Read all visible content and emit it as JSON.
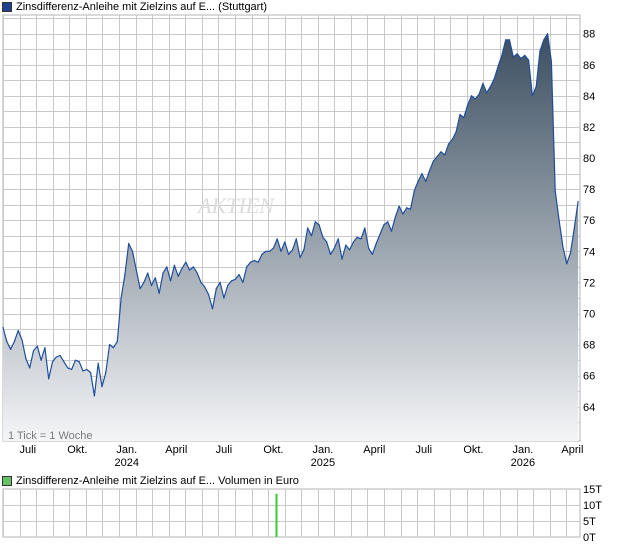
{
  "chart_data": [
    {
      "type": "area",
      "legend": "Zinsdifferenz-Anleihe mit Zielzins auf E... (Stuttgart)",
      "watermark": "AKTIEN",
      "tick_note": "1 Tick = 1 Woche",
      "x_tick_labels": [
        {
          "label": "Juli",
          "year": ""
        },
        {
          "label": "Okt.",
          "year": ""
        },
        {
          "label": "Jan.",
          "year": "2024"
        },
        {
          "label": "April",
          "year": ""
        },
        {
          "label": "Juli",
          "year": ""
        },
        {
          "label": "Okt.",
          "year": ""
        },
        {
          "label": "Jan.",
          "year": "2025"
        },
        {
          "label": "April",
          "year": ""
        },
        {
          "label": "Juli",
          "year": ""
        },
        {
          "label": "Okt.",
          "year": ""
        },
        {
          "label": "Jan.",
          "year": "2026"
        },
        {
          "label": "April",
          "year": ""
        }
      ],
      "x_tick_weeks": [
        6.5,
        19.5,
        32.5,
        45.5,
        58,
        71,
        84,
        97.5,
        110.5,
        123.5,
        136.5,
        149.5
      ],
      "y_ticks": [
        "64",
        "66",
        "68",
        "70",
        "72",
        "74",
        "76",
        "78",
        "80",
        "82",
        "84",
        "86",
        "88"
      ],
      "ylim": [
        61.8,
        89.2
      ],
      "xlim": [
        0,
        151.5
      ],
      "points": [
        [
          0,
          69.1
        ],
        [
          1,
          68.2
        ],
        [
          2,
          67.7
        ],
        [
          3,
          68.2
        ],
        [
          4,
          68.9
        ],
        [
          5,
          68.3
        ],
        [
          6,
          67.1
        ],
        [
          7,
          66.5
        ],
        [
          8,
          67.6
        ],
        [
          9,
          67.9
        ],
        [
          10,
          67.0
        ],
        [
          11,
          67.8
        ],
        [
          12,
          65.8
        ],
        [
          13,
          66.9
        ],
        [
          14,
          67.2
        ],
        [
          15,
          67.3
        ],
        [
          16,
          66.9
        ],
        [
          17,
          66.5
        ],
        [
          18,
          66.4
        ],
        [
          19,
          67.0
        ],
        [
          20,
          66.9
        ],
        [
          21,
          66.3
        ],
        [
          22,
          66.4
        ],
        [
          23,
          66.2
        ],
        [
          24,
          64.7
        ],
        [
          25,
          66.8
        ],
        [
          26,
          65.3
        ],
        [
          27,
          66.2
        ],
        [
          28,
          68.0
        ],
        [
          29,
          67.8
        ],
        [
          30,
          68.2
        ],
        [
          31,
          71.0
        ],
        [
          32,
          72.5
        ],
        [
          33,
          74.5
        ],
        [
          34,
          74.0
        ],
        [
          35,
          72.8
        ],
        [
          36,
          71.6
        ],
        [
          37,
          72.0
        ],
        [
          38,
          72.6
        ],
        [
          39,
          71.8
        ],
        [
          40,
          72.3
        ],
        [
          41,
          71.3
        ],
        [
          42,
          72.6
        ],
        [
          43,
          73.0
        ],
        [
          44,
          72.1
        ],
        [
          45,
          73.1
        ],
        [
          46,
          72.4
        ],
        [
          47,
          72.9
        ],
        [
          48,
          73.3
        ],
        [
          49,
          72.8
        ],
        [
          50,
          73.0
        ],
        [
          51,
          72.6
        ],
        [
          52,
          72.0
        ],
        [
          53,
          71.7
        ],
        [
          54,
          71.2
        ],
        [
          55,
          70.3
        ],
        [
          56,
          71.6
        ],
        [
          57,
          72.0
        ],
        [
          58,
          71.0
        ],
        [
          59,
          71.8
        ],
        [
          60,
          72.1
        ],
        [
          61,
          72.2
        ],
        [
          62,
          72.5
        ],
        [
          63,
          72.0
        ],
        [
          64,
          73.0
        ],
        [
          65,
          73.3
        ],
        [
          66,
          73.4
        ],
        [
          67,
          73.3
        ],
        [
          68,
          73.8
        ],
        [
          69,
          74.0
        ],
        [
          70,
          74.0
        ],
        [
          71,
          74.2
        ],
        [
          72,
          74.8
        ],
        [
          73,
          74.0
        ],
        [
          74,
          74.6
        ],
        [
          75,
          73.8
        ],
        [
          76,
          74.1
        ],
        [
          77,
          74.8
        ],
        [
          78,
          73.6
        ],
        [
          79,
          74.1
        ],
        [
          80,
          75.5
        ],
        [
          81,
          75.0
        ],
        [
          82,
          75.9
        ],
        [
          83,
          75.7
        ],
        [
          84,
          74.9
        ],
        [
          85,
          74.6
        ],
        [
          86,
          73.8
        ],
        [
          87,
          74.2
        ],
        [
          88,
          74.8
        ],
        [
          89,
          73.5
        ],
        [
          90,
          74.4
        ],
        [
          91,
          74.1
        ],
        [
          92,
          74.6
        ],
        [
          93,
          74.9
        ],
        [
          94,
          74.8
        ],
        [
          95,
          75.5
        ],
        [
          96,
          74.2
        ],
        [
          97,
          73.8
        ],
        [
          98,
          74.5
        ],
        [
          99,
          75.1
        ],
        [
          100,
          75.7
        ],
        [
          101,
          75.9
        ],
        [
          102,
          75.3
        ],
        [
          103,
          76.2
        ],
        [
          104,
          76.9
        ],
        [
          105,
          76.4
        ],
        [
          106,
          76.8
        ],
        [
          107,
          76.7
        ],
        [
          108,
          77.9
        ],
        [
          109,
          78.5
        ],
        [
          110,
          79.0
        ],
        [
          111,
          78.5
        ],
        [
          112,
          79.2
        ],
        [
          113,
          79.8
        ],
        [
          114,
          80.1
        ],
        [
          115,
          80.4
        ],
        [
          116,
          80.2
        ],
        [
          117,
          80.9
        ],
        [
          118,
          81.2
        ],
        [
          119,
          81.7
        ],
        [
          120,
          82.8
        ],
        [
          121,
          82.6
        ],
        [
          122,
          83.4
        ],
        [
          123,
          84.0
        ],
        [
          124,
          83.8
        ],
        [
          125,
          84.1
        ],
        [
          126,
          84.8
        ],
        [
          127,
          84.2
        ],
        [
          128,
          84.6
        ],
        [
          129,
          85.1
        ],
        [
          130,
          85.9
        ],
        [
          131,
          86.6
        ],
        [
          132,
          87.6
        ],
        [
          133,
          87.6
        ],
        [
          134,
          86.5
        ],
        [
          135,
          86.7
        ],
        [
          136,
          86.4
        ],
        [
          137,
          86.6
        ],
        [
          138,
          86.3
        ],
        [
          139,
          84.0
        ],
        [
          140,
          84.6
        ],
        [
          141,
          86.9
        ],
        [
          142,
          87.6
        ],
        [
          143,
          88.0
        ],
        [
          144,
          86.2
        ],
        [
          145,
          77.9
        ],
        [
          146,
          76.0
        ],
        [
          147,
          74.3
        ],
        [
          148,
          73.2
        ],
        [
          149,
          73.9
        ],
        [
          150,
          75.5
        ],
        [
          151,
          77.2
        ]
      ]
    },
    {
      "type": "bar",
      "legend": "Zinsdifferenz-Anleihe mit Zielzins auf E... Volumen in Euro",
      "y_ticks": [
        "15T",
        "10T",
        "5T",
        "0T"
      ],
      "ylim": [
        0,
        15000
      ],
      "bars": [
        {
          "week": 71.8,
          "value": 13500
        }
      ]
    }
  ],
  "colors": {
    "line": "#1f4e9c",
    "grid": "#c9c9c9",
    "fill_top": "#3b4e60",
    "fill_bottom": "#f4f5f7",
    "legend_price": "#1f3f8f",
    "legend_volume": "#66c266",
    "volume_bar": "#3bc93b",
    "watermark": "#dcdcdc"
  }
}
